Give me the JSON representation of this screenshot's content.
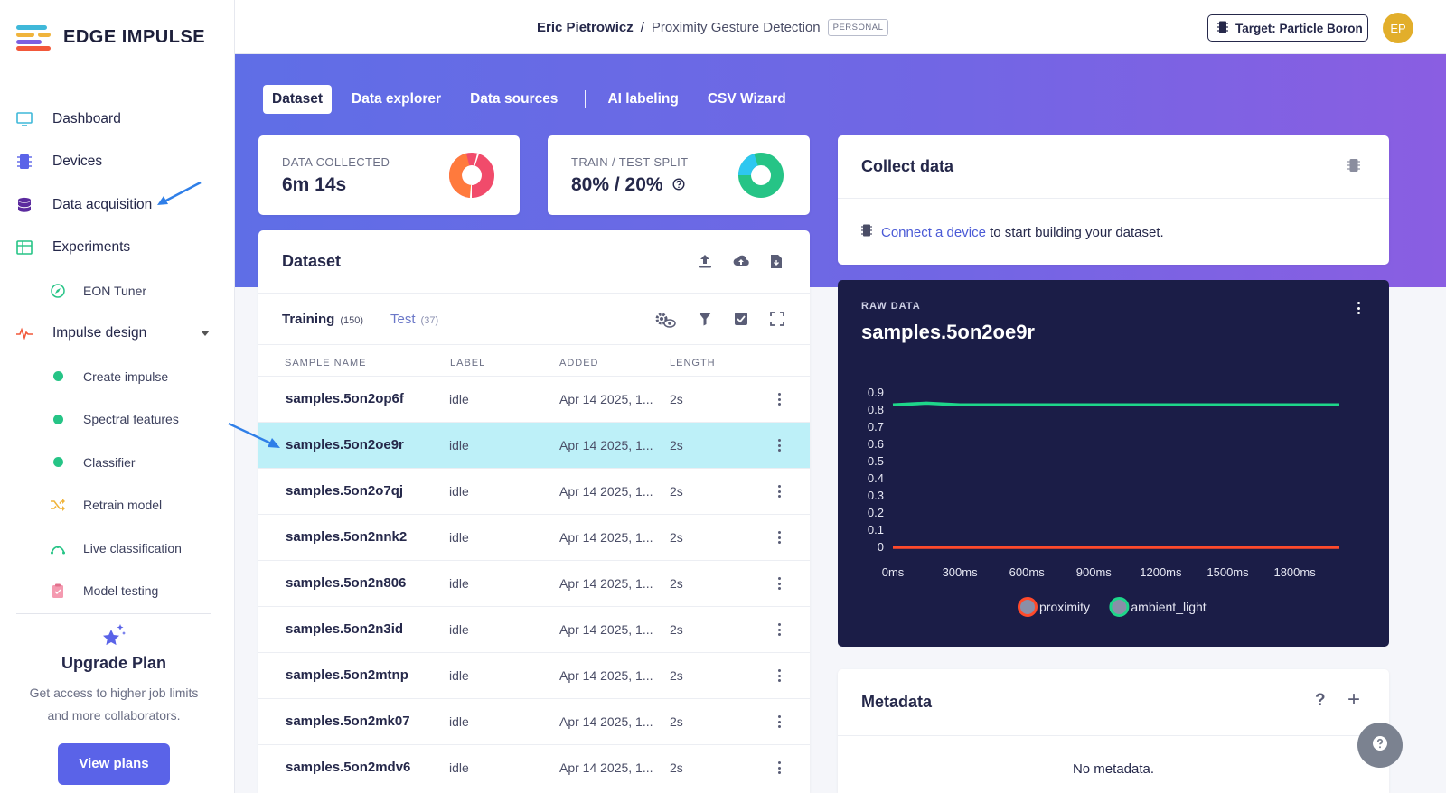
{
  "brand": {
    "name": "EDGE IMPULSE"
  },
  "sidebar": {
    "items": [
      {
        "label": "Dashboard"
      },
      {
        "label": "Devices"
      },
      {
        "label": "Data acquisition"
      },
      {
        "label": "Experiments"
      },
      {
        "label": "EON Tuner"
      },
      {
        "label": "Impulse design"
      },
      {
        "label": "Create impulse"
      },
      {
        "label": "Spectral features"
      },
      {
        "label": "Classifier"
      },
      {
        "label": "Retrain model"
      },
      {
        "label": "Live classification"
      },
      {
        "label": "Model testing"
      }
    ],
    "upgrade": {
      "title": "Upgrade Plan",
      "description": "Get access to higher job limits and more collaborators.",
      "button": "View plans"
    }
  },
  "header": {
    "owner": "Eric Pietrowicz",
    "separator": "/",
    "project": "Proximity Gesture Detection",
    "badge": "PERSONAL",
    "target": "Target: Particle Boron",
    "avatar": "EP"
  },
  "tabs": [
    "Dataset",
    "Data explorer",
    "Data sources",
    "AI labeling",
    "CSV Wizard"
  ],
  "stats": {
    "collected": {
      "label": "DATA COLLECTED",
      "value": "6m 14s"
    },
    "split": {
      "label": "TRAIN / TEST SPLIT",
      "value": "80% / 20%"
    }
  },
  "dataset": {
    "title": "Dataset",
    "training": {
      "label": "Training",
      "count": "(150)"
    },
    "test": {
      "label": "Test",
      "count": "(37)"
    },
    "columns": [
      "SAMPLE NAME",
      "LABEL",
      "ADDED",
      "LENGTH"
    ],
    "rows": [
      {
        "name": "samples.5on2op6f",
        "label": "idle",
        "added": "Apr 14 2025, 1...",
        "length": "2s"
      },
      {
        "name": "samples.5on2oe9r",
        "label": "idle",
        "added": "Apr 14 2025, 1...",
        "length": "2s"
      },
      {
        "name": "samples.5on2o7qj",
        "label": "idle",
        "added": "Apr 14 2025, 1...",
        "length": "2s"
      },
      {
        "name": "samples.5on2nnk2",
        "label": "idle",
        "added": "Apr 14 2025, 1...",
        "length": "2s"
      },
      {
        "name": "samples.5on2n806",
        "label": "idle",
        "added": "Apr 14 2025, 1...",
        "length": "2s"
      },
      {
        "name": "samples.5on2n3id",
        "label": "idle",
        "added": "Apr 14 2025, 1...",
        "length": "2s"
      },
      {
        "name": "samples.5on2mtnp",
        "label": "idle",
        "added": "Apr 14 2025, 1...",
        "length": "2s"
      },
      {
        "name": "samples.5on2mk07",
        "label": "idle",
        "added": "Apr 14 2025, 1...",
        "length": "2s"
      },
      {
        "name": "samples.5on2mdv6",
        "label": "idle",
        "added": "Apr 14 2025, 1...",
        "length": "2s"
      }
    ]
  },
  "collect": {
    "title": "Collect data",
    "link": "Connect a device",
    "text": "to start building your dataset."
  },
  "raw": {
    "label": "RAW DATA",
    "title": "samples.5on2oe9r"
  },
  "chart_data": {
    "type": "line",
    "title": "samples.5on2oe9r",
    "xlabel": "",
    "ylabel": "",
    "x_ticks": [
      "0ms",
      "300ms",
      "600ms",
      "900ms",
      "1200ms",
      "1500ms",
      "1800ms"
    ],
    "y_ticks": [
      "0.9",
      "0.8",
      "0.7",
      "0.6",
      "0.5",
      "0.4",
      "0.3",
      "0.2",
      "0.1",
      "0"
    ],
    "ylim": [
      0,
      0.9
    ],
    "xlim": [
      0,
      2000
    ],
    "series": [
      {
        "name": "proximity",
        "color": "#ff4a2b",
        "x": [
          0,
          300,
          600,
          900,
          1200,
          1500,
          1800,
          2000
        ],
        "values": [
          0,
          0,
          0,
          0,
          0,
          0,
          0,
          0
        ]
      },
      {
        "name": "ambient_light",
        "color": "#1ed68a",
        "x": [
          0,
          150,
          300,
          450,
          600,
          900,
          1200,
          1500,
          1800,
          2000
        ],
        "values": [
          0.83,
          0.84,
          0.83,
          0.83,
          0.83,
          0.83,
          0.83,
          0.83,
          0.83,
          0.83
        ]
      }
    ]
  },
  "metadata": {
    "title": "Metadata",
    "help": "?",
    "add": "+",
    "empty": "No metadata."
  },
  "colors": {
    "accent": "#5a63e8",
    "selected_row": "#bdf0f8",
    "raw_bg": "#1b1d47"
  }
}
